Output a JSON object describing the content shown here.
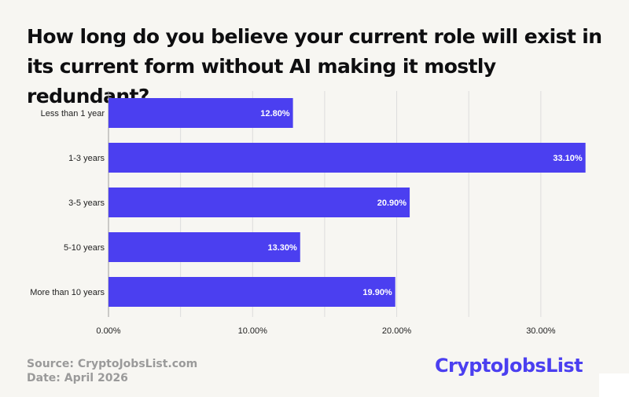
{
  "header": {
    "title": "How long do you believe your current role will exist in its current form without AI making it mostly redundant?"
  },
  "footer": {
    "source": "Source: CryptoJobsList.com",
    "date": "Date: April  2026"
  },
  "brand": {
    "logo_text": "CryptoJobsList",
    "color": "#4b3ff0"
  },
  "chart_data": {
    "type": "bar",
    "orientation": "horizontal",
    "categories": [
      "Less than 1 year",
      "1-3 years",
      "3-5 years",
      "5-10 years",
      "More than 10 years"
    ],
    "values": [
      12.8,
      33.1,
      20.9,
      13.3,
      19.9
    ],
    "value_labels": [
      "12.80%",
      "33.10%",
      "20.90%",
      "13.30%",
      "19.90%"
    ],
    "xlim": [
      0,
      33.5
    ],
    "xticks": [
      0,
      10,
      20,
      30
    ],
    "xtick_labels": [
      "0.00%",
      "10.00%",
      "20.00%",
      "30.00%"
    ],
    "grid": true,
    "bar_color": "#4b3ff0",
    "grid_color": "#dcdcdc"
  }
}
